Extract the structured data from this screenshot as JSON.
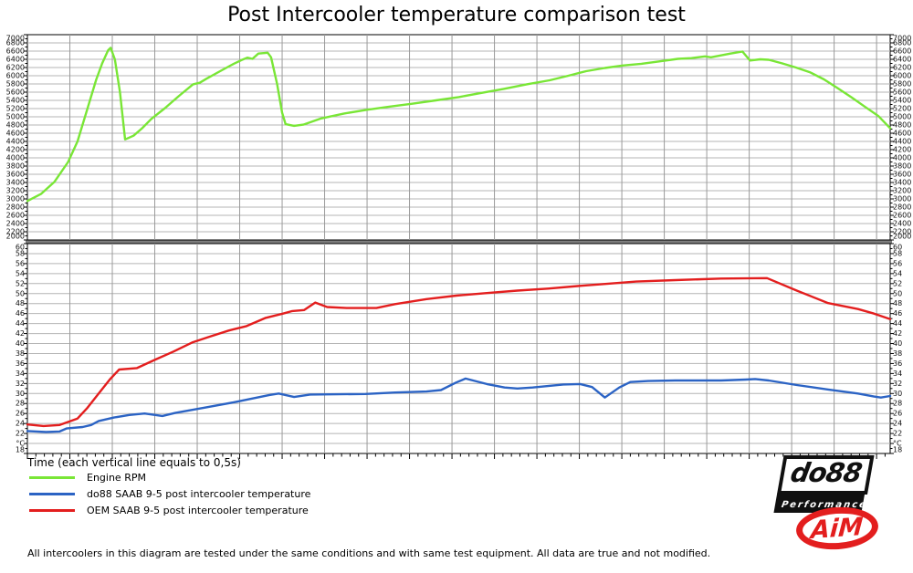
{
  "title": "Post Intercooler temperature comparison test",
  "time_axis_label": "Time (each vertical line equals to 0,5s)",
  "footer": "All intercoolers in this diagram are tested under the same conditions and with same test equipment. All data are true and not modified.",
  "legend": [
    {
      "label": "Engine RPM",
      "color": "#79e636"
    },
    {
      "label": "do88 SAAB 9-5 post intercooler temperature",
      "color": "#2b63c4"
    },
    {
      "label": "OEM SAAB 9-5 post intercooler temperature",
      "color": "#e31e1e"
    }
  ],
  "logos": {
    "do88_text": "do88",
    "do88_sub": "Performance",
    "aim_text": "AiM"
  },
  "chart_data": [
    {
      "type": "line",
      "name": "engine-rpm-chart",
      "grid_color": "#b4b4b4",
      "vgrid_color": "#9a9a9a",
      "y_axis": {
        "min": 2000,
        "max": 7000,
        "step": 200
      },
      "x_axis": {
        "duration_seconds": 10.16,
        "gridline_interval_seconds": 0.5,
        "minor_tick_seconds": 0.1
      },
      "series": [
        {
          "name": "Engine RPM",
          "slug": "engine-rpm-line",
          "color": "#79e636",
          "points": [
            [
              0.0,
              2950
            ],
            [
              0.16,
              3120
            ],
            [
              0.32,
              3420
            ],
            [
              0.48,
              3900
            ],
            [
              0.59,
              4400
            ],
            [
              0.7,
              5150
            ],
            [
              0.81,
              5900
            ],
            [
              0.88,
              6300
            ],
            [
              0.95,
              6620
            ],
            [
              0.98,
              6680
            ],
            [
              1.03,
              6400
            ],
            [
              1.09,
              5600
            ],
            [
              1.15,
              4450
            ],
            [
              1.25,
              4540
            ],
            [
              1.35,
              4720
            ],
            [
              1.46,
              4950
            ],
            [
              1.62,
              5210
            ],
            [
              1.78,
              5500
            ],
            [
              1.95,
              5790
            ],
            [
              2.03,
              5830
            ],
            [
              2.11,
              5930
            ],
            [
              2.27,
              6110
            ],
            [
              2.43,
              6290
            ],
            [
              2.52,
              6380
            ],
            [
              2.59,
              6440
            ],
            [
              2.65,
              6410
            ],
            [
              2.72,
              6540
            ],
            [
              2.83,
              6560
            ],
            [
              2.87,
              6450
            ],
            [
              2.94,
              5800
            ],
            [
              3.0,
              5100
            ],
            [
              3.04,
              4820
            ],
            [
              3.14,
              4780
            ],
            [
              3.25,
              4810
            ],
            [
              3.46,
              4960
            ],
            [
              3.73,
              5080
            ],
            [
              4.0,
              5170
            ],
            [
              4.27,
              5250
            ],
            [
              4.54,
              5320
            ],
            [
              4.81,
              5400
            ],
            [
              5.08,
              5480
            ],
            [
              5.34,
              5580
            ],
            [
              5.61,
              5680
            ],
            [
              5.88,
              5790
            ],
            [
              6.15,
              5890
            ],
            [
              6.37,
              6000
            ],
            [
              6.58,
              6110
            ],
            [
              6.8,
              6190
            ],
            [
              7.01,
              6250
            ],
            [
              7.23,
              6290
            ],
            [
              7.44,
              6350
            ],
            [
              7.66,
              6410
            ],
            [
              7.82,
              6430
            ],
            [
              7.98,
              6470
            ],
            [
              8.05,
              6450
            ],
            [
              8.28,
              6540
            ],
            [
              8.42,
              6590
            ],
            [
              8.51,
              6370
            ],
            [
              8.63,
              6400
            ],
            [
              8.73,
              6390
            ],
            [
              8.89,
              6300
            ],
            [
              9.05,
              6200
            ],
            [
              9.22,
              6080
            ],
            [
              9.38,
              5910
            ],
            [
              9.54,
              5700
            ],
            [
              9.7,
              5480
            ],
            [
              9.86,
              5250
            ],
            [
              10.02,
              5020
            ],
            [
              10.16,
              4720
            ]
          ]
        }
      ]
    },
    {
      "type": "line",
      "name": "temperature-chart",
      "grid_color": "#b4b4b4",
      "vgrid_color": "#9a9a9a",
      "y_axis": {
        "min": 18,
        "max": 60,
        "step": 2,
        "unit_label": "°C",
        "unit_replaces_value": 20
      },
      "x_axis": {
        "duration_seconds": 10.16,
        "gridline_interval_seconds": 0.5,
        "minor_tick_seconds": 0.1
      },
      "series": [
        {
          "name": "do88 SAAB 9-5 post intercooler temperature",
          "slug": "do88-temp-line",
          "color": "#2b63c4",
          "points": [
            [
              0.0,
              22.5
            ],
            [
              0.22,
              22.3
            ],
            [
              0.38,
              22.4
            ],
            [
              0.46,
              23.0
            ],
            [
              0.65,
              23.3
            ],
            [
              0.75,
              23.7
            ],
            [
              0.84,
              24.5
            ],
            [
              1.02,
              25.2
            ],
            [
              1.2,
              25.7
            ],
            [
              1.38,
              26.0
            ],
            [
              1.59,
              25.5
            ],
            [
              1.74,
              26.1
            ],
            [
              2.1,
              27.2
            ],
            [
              2.45,
              28.3
            ],
            [
              2.85,
              29.7
            ],
            [
              2.96,
              30.0
            ],
            [
              3.14,
              29.3
            ],
            [
              3.33,
              29.8
            ],
            [
              3.98,
              29.9
            ],
            [
              4.33,
              30.2
            ],
            [
              4.7,
              30.4
            ],
            [
              4.87,
              30.7
            ],
            [
              5.05,
              32.2
            ],
            [
              5.16,
              33.0
            ],
            [
              5.41,
              31.9
            ],
            [
              5.62,
              31.2
            ],
            [
              5.77,
              31.0
            ],
            [
              5.95,
              31.2
            ],
            [
              6.13,
              31.5
            ],
            [
              6.31,
              31.8
            ],
            [
              6.51,
              31.9
            ],
            [
              6.65,
              31.3
            ],
            [
              6.8,
              29.2
            ],
            [
              6.97,
              31.2
            ],
            [
              7.1,
              32.3
            ],
            [
              7.31,
              32.5
            ],
            [
              7.63,
              32.6
            ],
            [
              8.17,
              32.6
            ],
            [
              8.46,
              32.8
            ],
            [
              8.57,
              32.9
            ],
            [
              8.73,
              32.6
            ],
            [
              9.06,
              31.7
            ],
            [
              9.43,
              30.8
            ],
            [
              9.78,
              30.0
            ],
            [
              9.97,
              29.4
            ],
            [
              10.05,
              29.2
            ],
            [
              10.16,
              29.5
            ]
          ]
        },
        {
          "name": "OEM SAAB 9-5 post intercooler temperature",
          "slug": "oem-temp-line",
          "color": "#e31e1e",
          "points": [
            [
              0.0,
              23.8
            ],
            [
              0.19,
              23.5
            ],
            [
              0.38,
              23.7
            ],
            [
              0.59,
              25.0
            ],
            [
              0.7,
              27.0
            ],
            [
              0.84,
              30.0
            ],
            [
              0.97,
              32.8
            ],
            [
              1.08,
              34.8
            ],
            [
              1.29,
              35.1
            ],
            [
              1.51,
              36.8
            ],
            [
              1.72,
              38.4
            ],
            [
              1.94,
              40.2
            ],
            [
              2.15,
              41.4
            ],
            [
              2.37,
              42.6
            ],
            [
              2.58,
              43.5
            ],
            [
              2.8,
              45.1
            ],
            [
              3.01,
              46.0
            ],
            [
              3.12,
              46.5
            ],
            [
              3.26,
              46.7
            ],
            [
              3.39,
              48.2
            ],
            [
              3.53,
              47.3
            ],
            [
              3.76,
              47.1
            ],
            [
              4.11,
              47.1
            ],
            [
              4.33,
              47.9
            ],
            [
              4.7,
              48.9
            ],
            [
              5.05,
              49.6
            ],
            [
              5.41,
              50.1
            ],
            [
              5.77,
              50.6
            ],
            [
              6.13,
              51.0
            ],
            [
              6.48,
              51.5
            ],
            [
              6.77,
              51.9
            ],
            [
              7.17,
              52.4
            ],
            [
              7.63,
              52.7
            ],
            [
              8.17,
              53.0
            ],
            [
              8.71,
              53.1
            ],
            [
              9.06,
              50.6
            ],
            [
              9.43,
              48.1
            ],
            [
              9.78,
              46.9
            ],
            [
              9.97,
              46.0
            ],
            [
              10.16,
              44.9
            ]
          ]
        }
      ]
    }
  ]
}
